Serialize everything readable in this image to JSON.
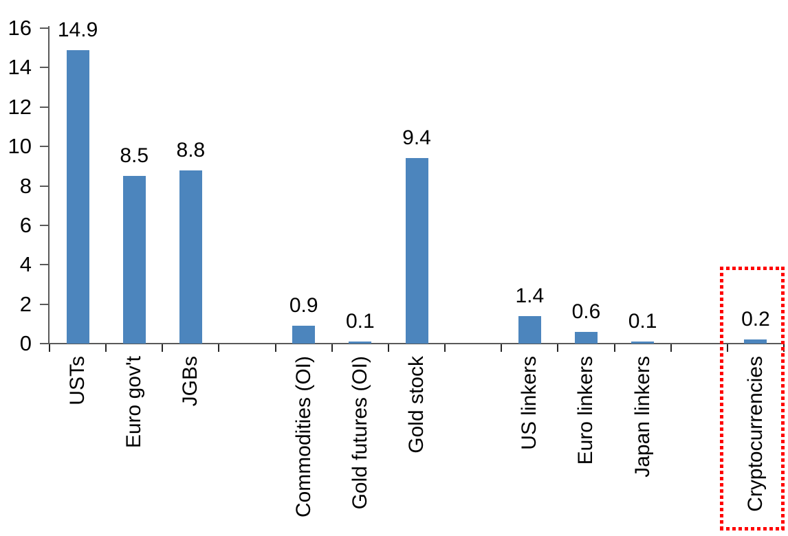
{
  "chart_data": {
    "type": "bar",
    "title": "",
    "categories": [
      "USTs",
      "Euro gov't",
      "JGBs",
      "Commodities (OI)",
      "Gold futures (OI)",
      "Gold stock",
      "US linkers",
      "Euro linkers",
      "Japan linkers",
      "Cryptocurrencies"
    ],
    "values": [
      14.9,
      8.5,
      8.8,
      0.9,
      0.1,
      9.4,
      1.4,
      0.6,
      0.1,
      0.2
    ],
    "value_labels": [
      "14.9",
      "8.5",
      "8.8",
      "0.9",
      "0.1",
      "9.4",
      "1.4",
      "0.6",
      "0.1",
      "0.2"
    ],
    "group_gaps_after_index": [
      2,
      5,
      8
    ],
    "xlabel": "",
    "ylabel": "",
    "ylim": [
      0,
      16
    ],
    "yticks": [
      0,
      2,
      4,
      6,
      8,
      10,
      12,
      14,
      16
    ],
    "grid": false,
    "legend": false,
    "bar_color": "#4C85BD",
    "axis_color": "#595959",
    "tick_color": "#262626",
    "text_color": "#000000",
    "highlight": {
      "category": "Cryptocurrencies",
      "box_color": "#FF0000",
      "box_style": "square-dotted"
    }
  }
}
